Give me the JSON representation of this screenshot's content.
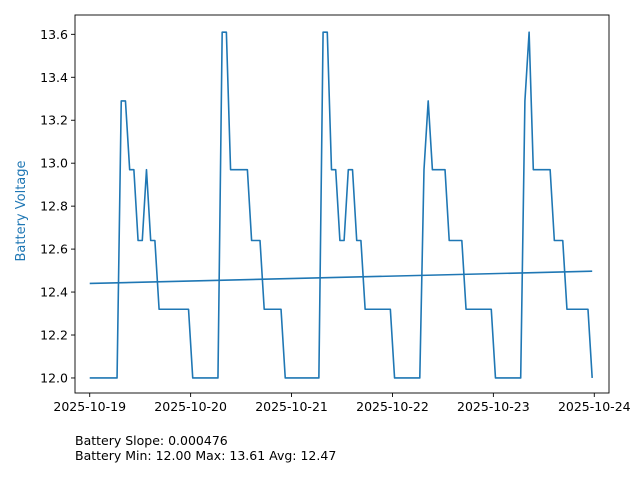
{
  "chart_data": {
    "type": "line",
    "ylabel": "Battery Voltage",
    "ylim": [
      11.93,
      13.69
    ],
    "yticks": [
      12.0,
      12.2,
      12.4,
      12.6,
      12.8,
      13.0,
      13.2,
      13.4,
      13.6
    ],
    "ytick_labels": [
      "12.0",
      "12.2",
      "12.4",
      "12.6",
      "12.8",
      "13.0",
      "13.2",
      "13.4",
      "13.6"
    ],
    "xlim": [
      "2025-10-18T20:30",
      "2025-10-24T03:30"
    ],
    "xticks": [
      "2025-10-19T00:00",
      "2025-10-20T00:00",
      "2025-10-21T00:00",
      "2025-10-22T00:00",
      "2025-10-23T00:00",
      "2025-10-24T00:00"
    ],
    "xtick_labels": [
      "2025-10-19",
      "2025-10-20",
      "2025-10-21",
      "2025-10-22",
      "2025-10-23",
      "2025-10-24"
    ],
    "grid": false,
    "line_color": "#1f77b4",
    "series": [
      {
        "name": "",
        "points": [
          [
            "2025-10-19T00:00",
            12.0
          ],
          [
            "2025-10-19T06:30",
            12.0
          ],
          [
            "2025-10-19T07:30",
            13.29
          ],
          [
            "2025-10-19T08:30",
            13.29
          ],
          [
            "2025-10-19T09:30",
            12.97
          ],
          [
            "2025-10-19T10:30",
            12.97
          ],
          [
            "2025-10-19T11:30",
            12.64
          ],
          [
            "2025-10-19T12:30",
            12.64
          ],
          [
            "2025-10-19T13:30",
            12.97
          ],
          [
            "2025-10-19T14:30",
            12.64
          ],
          [
            "2025-10-19T15:30",
            12.64
          ],
          [
            "2025-10-19T16:30",
            12.32
          ],
          [
            "2025-10-19T23:30",
            12.32
          ],
          [
            "2025-10-20T00:30",
            12.0
          ],
          [
            "2025-10-20T06:30",
            12.0
          ],
          [
            "2025-10-20T07:30",
            13.61
          ],
          [
            "2025-10-20T08:30",
            13.61
          ],
          [
            "2025-10-20T09:30",
            12.97
          ],
          [
            "2025-10-20T13:30",
            12.97
          ],
          [
            "2025-10-20T14:30",
            12.64
          ],
          [
            "2025-10-20T16:30",
            12.64
          ],
          [
            "2025-10-20T17:30",
            12.32
          ],
          [
            "2025-10-20T21:30",
            12.32
          ],
          [
            "2025-10-20T22:30",
            12.0
          ],
          [
            "2025-10-21T06:30",
            12.0
          ],
          [
            "2025-10-21T07:30",
            13.61
          ],
          [
            "2025-10-21T08:30",
            13.61
          ],
          [
            "2025-10-21T09:30",
            12.97
          ],
          [
            "2025-10-21T10:30",
            12.97
          ],
          [
            "2025-10-21T11:30",
            12.64
          ],
          [
            "2025-10-21T12:30",
            12.64
          ],
          [
            "2025-10-21T13:30",
            12.97
          ],
          [
            "2025-10-21T14:30",
            12.97
          ],
          [
            "2025-10-21T15:30",
            12.64
          ],
          [
            "2025-10-21T16:30",
            12.64
          ],
          [
            "2025-10-21T17:30",
            12.32
          ],
          [
            "2025-10-21T23:30",
            12.32
          ],
          [
            "2025-10-22T00:30",
            12.0
          ],
          [
            "2025-10-22T06:30",
            12.0
          ],
          [
            "2025-10-22T07:30",
            12.97
          ],
          [
            "2025-10-22T08:30",
            13.29
          ],
          [
            "2025-10-22T09:30",
            12.97
          ],
          [
            "2025-10-22T12:30",
            12.97
          ],
          [
            "2025-10-22T13:30",
            12.64
          ],
          [
            "2025-10-22T16:30",
            12.64
          ],
          [
            "2025-10-22T17:30",
            12.32
          ],
          [
            "2025-10-22T23:30",
            12.32
          ],
          [
            "2025-10-23T00:30",
            12.0
          ],
          [
            "2025-10-23T06:30",
            12.0
          ],
          [
            "2025-10-23T07:30",
            13.29
          ],
          [
            "2025-10-23T08:30",
            13.61
          ],
          [
            "2025-10-23T09:30",
            12.97
          ],
          [
            "2025-10-23T13:30",
            12.97
          ],
          [
            "2025-10-23T14:30",
            12.64
          ],
          [
            "2025-10-23T16:30",
            12.64
          ],
          [
            "2025-10-23T17:30",
            12.32
          ],
          [
            "2025-10-23T22:30",
            12.32
          ],
          [
            "2025-10-23T23:30",
            12.0
          ]
        ]
      },
      {
        "name": "",
        "points": [
          [
            "2025-10-19T00:00",
            12.44
          ],
          [
            "2025-10-23T23:30",
            12.497
          ]
        ]
      }
    ],
    "annotations": [
      "Battery Slope: 0.000476",
      "Battery Min: 12.00 Max: 13.61 Avg: 12.47"
    ]
  }
}
